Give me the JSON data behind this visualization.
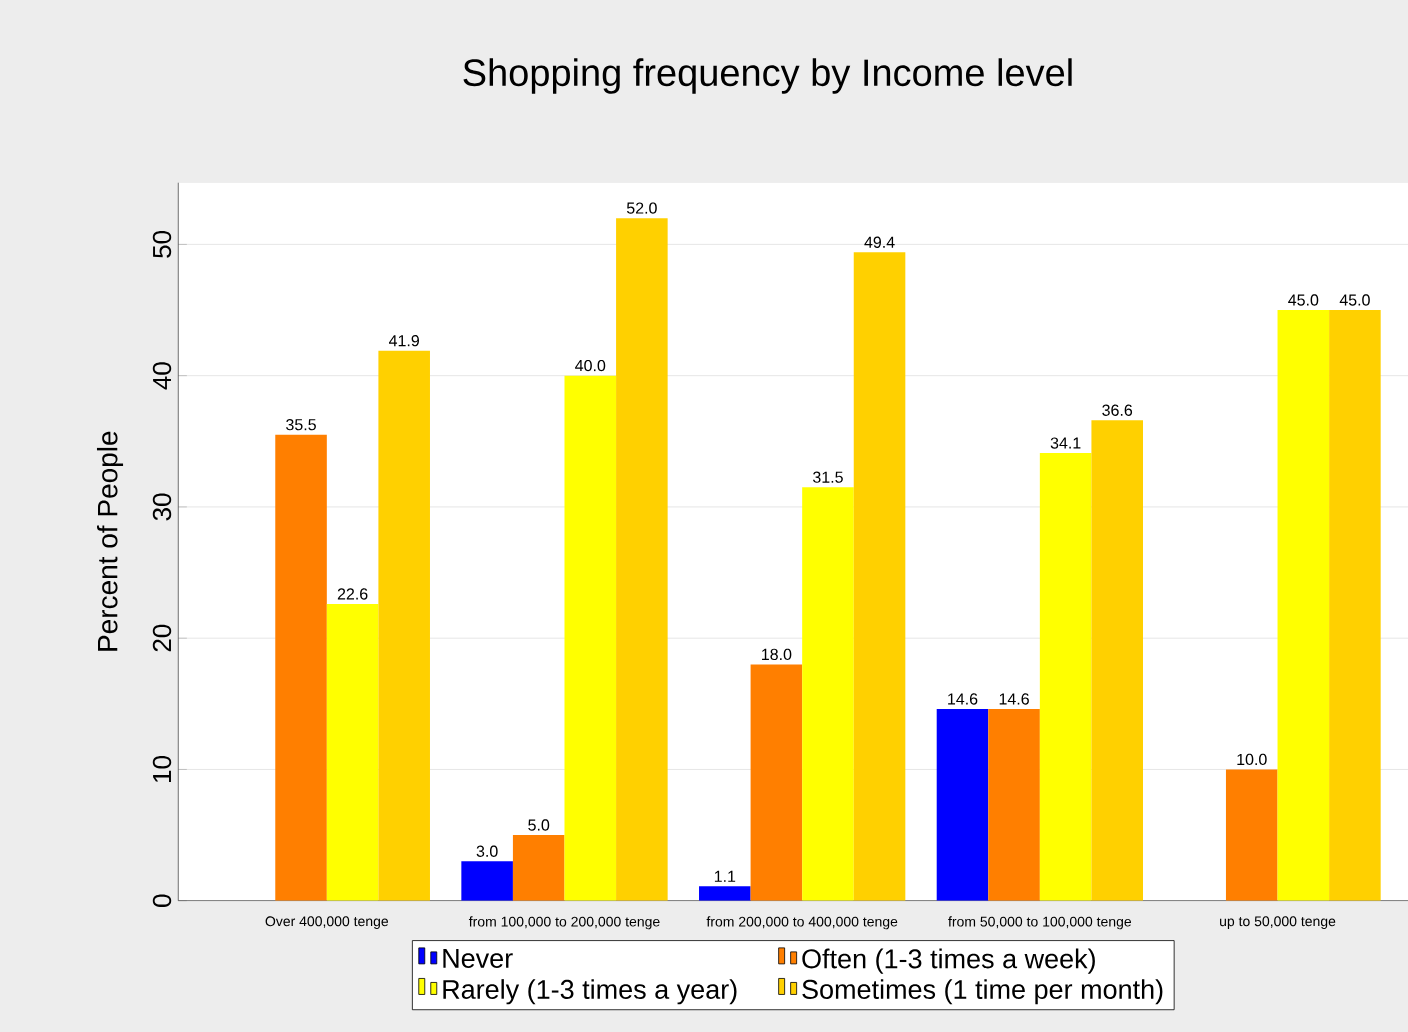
{
  "chart_data": {
    "type": "bar",
    "title": "Shopping frequency by Income level",
    "ylabel": "Percent of People",
    "categories": [
      "Over 400,000 tenge",
      "from 100,000 to 200,000 tenge",
      "from 200,000 to 400,000 tenge",
      "from 50,000 to 100,000 tenge",
      "up to 50,000 tenge"
    ],
    "series": [
      {
        "name": "Never",
        "color": "#0000ff",
        "values": [
          null,
          3.0,
          1.1,
          14.6,
          null
        ],
        "value_labels": [
          null,
          "3.0",
          "1.1",
          "14.6",
          null
        ]
      },
      {
        "name": "Often (1-3 times a week)",
        "color": "#ff7f00",
        "values": [
          35.5,
          5.0,
          18.0,
          14.6,
          10.0
        ],
        "value_labels": [
          "35.5",
          "5.0",
          "18.0",
          "14.6",
          "10.0"
        ]
      },
      {
        "name": "Rarely (1-3 times a year)",
        "color": "#ffff00",
        "values": [
          22.6,
          40.0,
          31.5,
          34.1,
          45.0
        ],
        "value_labels": [
          "22.6",
          "40.0",
          "31.5",
          "34.1",
          "45.0"
        ]
      },
      {
        "name": "Sometimes (1 time per month)",
        "color": "#ffd000",
        "values": [
          41.9,
          52.0,
          49.4,
          36.6,
          45.0
        ],
        "value_labels": [
          "41.9",
          "52.0",
          "49.4",
          "36.6",
          "45.0"
        ]
      }
    ],
    "ylim": [
      0,
      54.7
    ],
    "yticks": [
      0,
      10,
      20,
      30,
      40,
      50
    ],
    "grid": "y",
    "legend": "bottom"
  }
}
